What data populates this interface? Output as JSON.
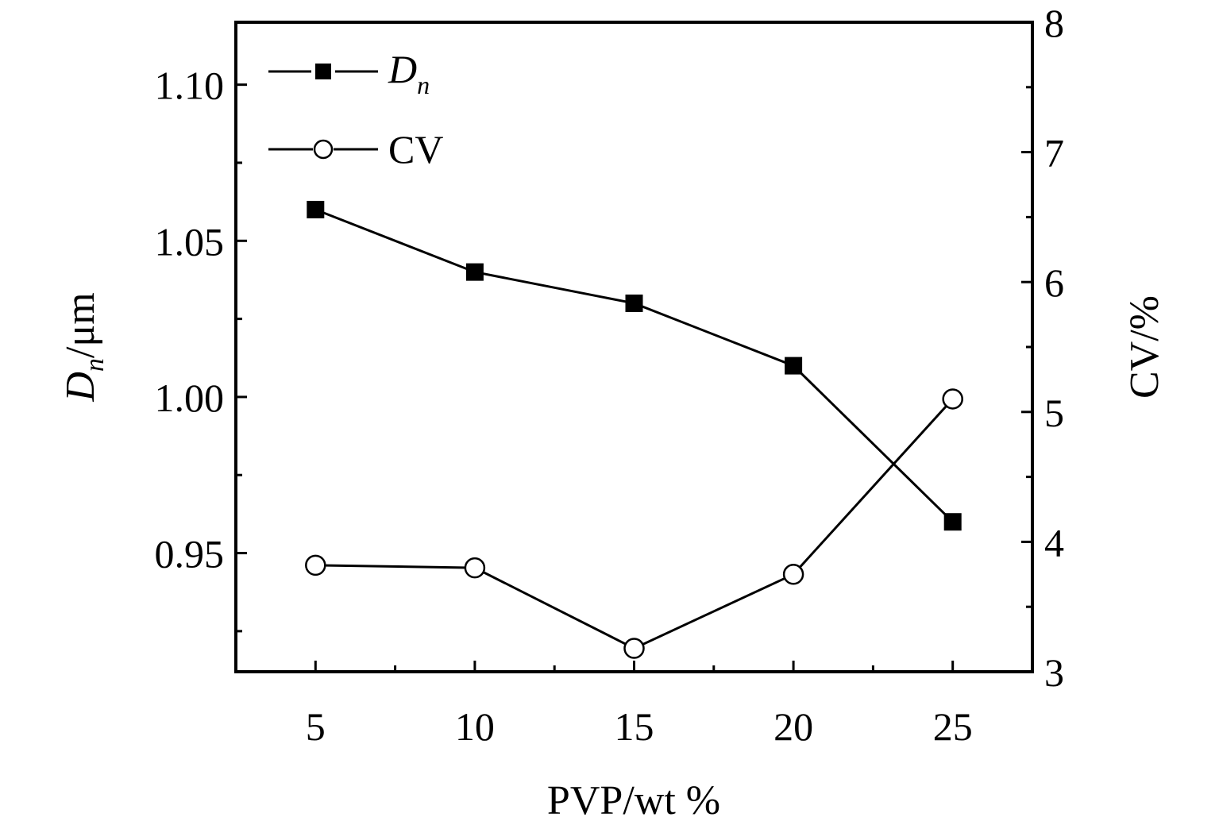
{
  "chart_data": {
    "type": "line",
    "title": "",
    "xlabel": "PVP/wt %",
    "ylabel_left": {
      "main": "D",
      "sub": "n",
      "unit": "/μm"
    },
    "ylabel_right": "CV/%",
    "x": [
      5,
      10,
      15,
      20,
      25
    ],
    "xlim": [
      2.5,
      27.5
    ],
    "xticks": [
      5,
      10,
      15,
      20,
      25
    ],
    "xtick_labels": [
      "5",
      "10",
      "15",
      "20",
      "25"
    ],
    "ylim_left": [
      0.912,
      1.12
    ],
    "yticks_left": [
      0.95,
      1.0,
      1.05,
      1.1
    ],
    "ytick_labels_left": [
      "0.95",
      "1.00",
      "1.05",
      "1.10"
    ],
    "ylim_right": [
      3,
      8
    ],
    "yticks_right": [
      3,
      4,
      5,
      6,
      7,
      8
    ],
    "ytick_labels_right": [
      "3",
      "4",
      "5",
      "6",
      "7",
      "8"
    ],
    "legend_position": "top-left",
    "series": [
      {
        "name": "D",
        "name_sub": "n",
        "axis": "left",
        "marker": "filled-square",
        "values": [
          1.06,
          1.04,
          1.03,
          1.01,
          0.96
        ]
      },
      {
        "name": "CV",
        "name_sub": "",
        "axis": "right",
        "marker": "open-circle",
        "values": [
          3.82,
          3.8,
          3.18,
          3.75,
          5.1
        ]
      }
    ]
  }
}
